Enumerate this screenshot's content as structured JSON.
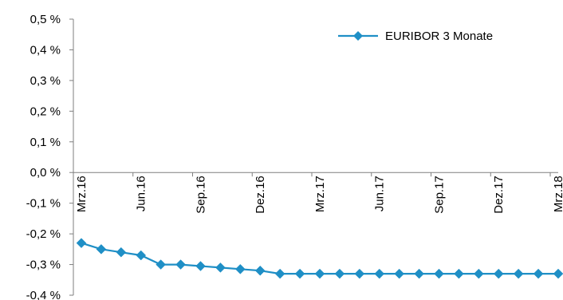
{
  "chart_data": {
    "type": "line",
    "title": "",
    "xlabel": "",
    "ylabel": "",
    "ylim": [
      -0.4,
      0.5
    ],
    "y_ticks": [
      "0,5 %",
      "0,4 %",
      "0,3 %",
      "0,2 %",
      "0,1 %",
      "0,0 %",
      "-0,1 %",
      "-0,2 %",
      "-0,3 %",
      "-0,4 %"
    ],
    "x_tick_labels": [
      "Mrz.16",
      "Jun.16",
      "Sep.16",
      "Dez.16",
      "Mrz.17",
      "Jun.17",
      "Sep.17",
      "Dez.17",
      "Mrz.18"
    ],
    "grid": false,
    "legend_position": "top-right",
    "series": [
      {
        "name": "EURIBOR 3 Monate",
        "color": "#1F8FC6",
        "marker": "diamond",
        "values": [
          -0.23,
          -0.25,
          -0.26,
          -0.27,
          -0.3,
          -0.3,
          -0.305,
          -0.31,
          -0.315,
          -0.32,
          -0.33,
          -0.33,
          -0.33,
          -0.33,
          -0.33,
          -0.33,
          -0.33,
          -0.33,
          -0.33,
          -0.33,
          -0.33,
          -0.33,
          -0.33,
          -0.33,
          -0.33
        ]
      }
    ]
  }
}
